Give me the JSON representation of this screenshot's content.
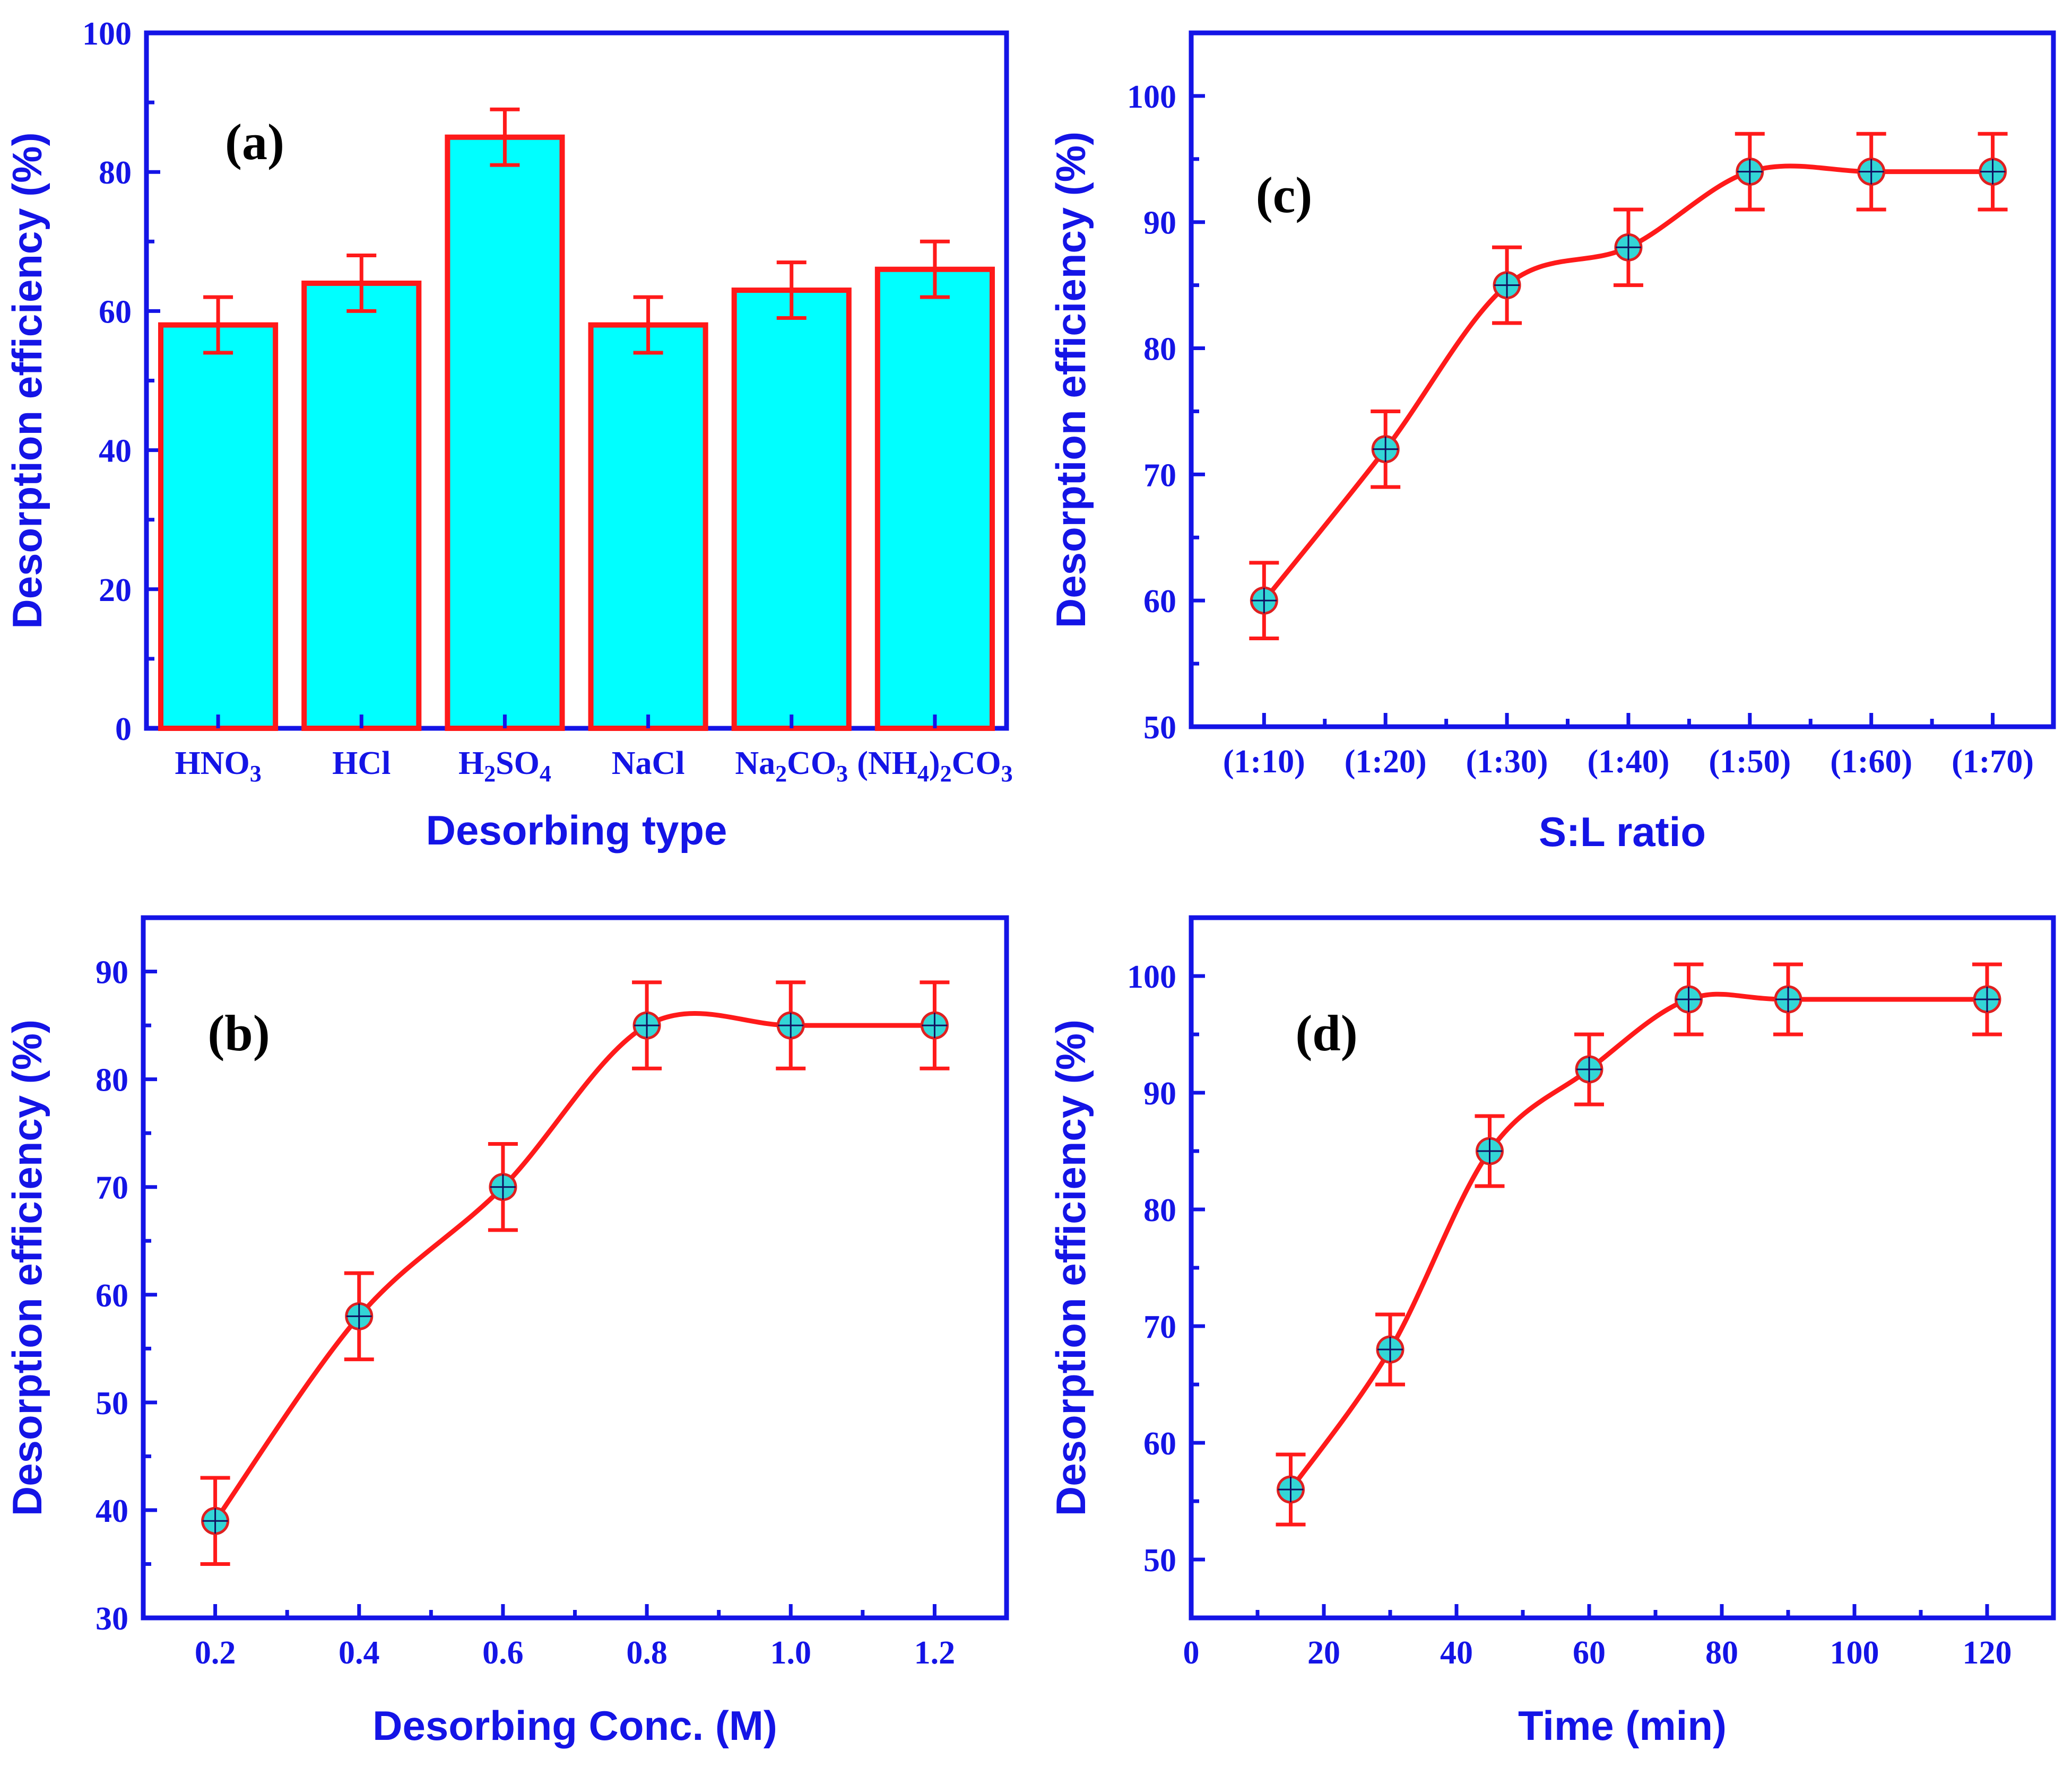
{
  "colors": {
    "axis": "#1414e6",
    "bar_fill": "#00ffff",
    "bar_edge": "#ff1a1a",
    "line": "#ff1a1a",
    "marker_fill": "#33d6d6",
    "panel_tag": "#000000"
  },
  "chart_data": [
    {
      "id": "a",
      "panel_label": "(a)",
      "type": "bar",
      "title": "",
      "xlabel": "Desorbing type",
      "ylabel": "Desorption efficiency (%)",
      "categories": [
        "HNO3",
        "HCl",
        "H2SO4",
        "NaCl",
        "Na2CO3",
        "(NH4)2CO3"
      ],
      "category_labels": [
        [
          {
            "t": "HNO"
          },
          {
            "t": "3",
            "sub": true
          }
        ],
        [
          {
            "t": "HCl"
          }
        ],
        [
          {
            "t": "H"
          },
          {
            "t": "2",
            "sub": true
          },
          {
            "t": "SO"
          },
          {
            "t": "4",
            "sub": true
          }
        ],
        [
          {
            "t": "NaCl"
          }
        ],
        [
          {
            "t": "Na"
          },
          {
            "t": "2",
            "sub": true
          },
          {
            "t": "CO"
          },
          {
            "t": "3",
            "sub": true
          }
        ],
        [
          {
            "t": "(NH"
          },
          {
            "t": "4",
            "sub": true
          },
          {
            "t": ")"
          },
          {
            "t": "2",
            "sub": true
          },
          {
            "t": "CO"
          },
          {
            "t": "3",
            "sub": true
          }
        ]
      ],
      "values": [
        58,
        64,
        85,
        58,
        63,
        66
      ],
      "errors": [
        4,
        4,
        4,
        4,
        4,
        4
      ],
      "ylim": [
        0,
        100
      ],
      "yticks": [
        0,
        20,
        40,
        60,
        80,
        100
      ],
      "yticklabels": [
        "0",
        "20",
        "40",
        "60",
        "80",
        "100"
      ],
      "grid": false
    },
    {
      "id": "b",
      "panel_label": "(b)",
      "type": "line",
      "title": "",
      "xlabel": "Desorbing Conc. (M)",
      "ylabel": "Desorption efficiency (%)",
      "x": [
        0.2,
        0.4,
        0.6,
        0.8,
        1.0,
        1.2
      ],
      "values": [
        39,
        58,
        70,
        85,
        85,
        85
      ],
      "errors": [
        4,
        4,
        4,
        4,
        4,
        4
      ],
      "xlim": [
        0.1,
        1.3
      ],
      "xticks": [
        0.2,
        0.4,
        0.6,
        0.8,
        1.0,
        1.2
      ],
      "xticklabels": [
        "0.2",
        "0.4",
        "0.6",
        "0.8",
        "1.0",
        "1.2"
      ],
      "ylim": [
        30,
        95
      ],
      "yticks": [
        30,
        40,
        50,
        60,
        70,
        80,
        90
      ],
      "yticklabels": [
        "30",
        "40",
        "50",
        "60",
        "70",
        "80",
        "90"
      ],
      "grid": false
    },
    {
      "id": "c",
      "panel_label": "(c)",
      "type": "line",
      "title": "",
      "xlabel": "S:L ratio",
      "ylabel": "Desorption efficiency (%)",
      "x": [
        1,
        2,
        3,
        4,
        5,
        6,
        7
      ],
      "values": [
        60,
        72,
        85,
        88,
        94,
        94,
        94
      ],
      "errors": [
        3,
        3,
        3,
        3,
        3,
        3,
        3
      ],
      "xlim": [
        0.4,
        7.5
      ],
      "xticks": [
        1,
        2,
        3,
        4,
        5,
        6,
        7
      ],
      "xticklabels": [
        "(1:10)",
        "(1:20)",
        "(1:30)",
        "(1:40)",
        "(1:50)",
        "(1:60)",
        "(1:70)"
      ],
      "ylim": [
        50,
        105
      ],
      "yticks": [
        50,
        60,
        70,
        80,
        90,
        100
      ],
      "yticklabels": [
        "50",
        "60",
        "70",
        "80",
        "90",
        "100"
      ],
      "grid": false
    },
    {
      "id": "d",
      "panel_label": "(d)",
      "type": "line",
      "title": "",
      "xlabel": "Time (min)",
      "ylabel": "Desorption efficiency (%)",
      "x": [
        15,
        30,
        45,
        60,
        75,
        90,
        120
      ],
      "values": [
        56,
        68,
        85,
        92,
        98,
        98,
        98
      ],
      "errors": [
        3,
        3,
        3,
        3,
        3,
        3,
        3
      ],
      "xlim": [
        0,
        130
      ],
      "xticks": [
        0,
        20,
        40,
        60,
        80,
        100,
        120
      ],
      "xticklabels": [
        "0",
        "20",
        "40",
        "60",
        "80",
        "100",
        "120"
      ],
      "ylim": [
        45,
        105
      ],
      "yticks": [
        50,
        60,
        70,
        80,
        90,
        100
      ],
      "yticklabels": [
        "50",
        "60",
        "70",
        "80",
        "90",
        "100"
      ],
      "grid": false
    }
  ]
}
